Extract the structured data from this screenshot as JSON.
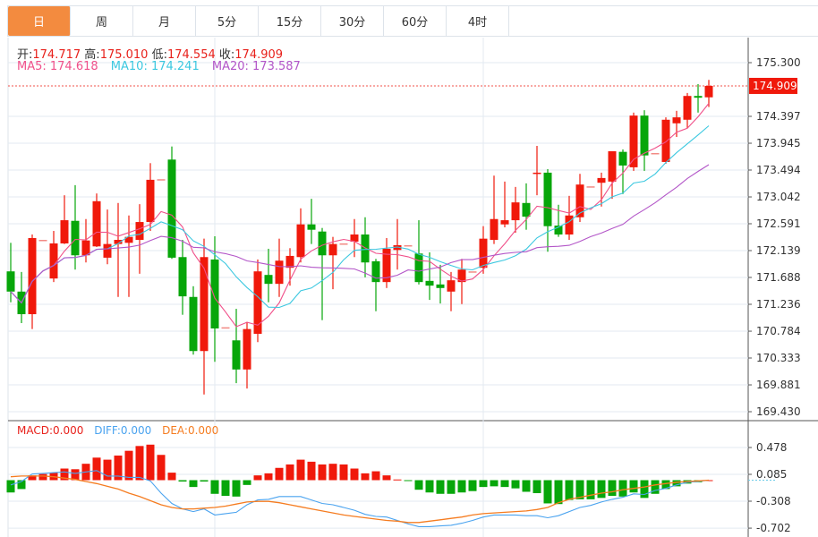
{
  "tabs": [
    {
      "label": "日",
      "active": true
    },
    {
      "label": "周"
    },
    {
      "label": "月"
    },
    {
      "label": "5分"
    },
    {
      "label": "15分"
    },
    {
      "label": "30分"
    },
    {
      "label": "60分"
    },
    {
      "label": "4时"
    }
  ],
  "ohlc_info": {
    "open_label": "开:",
    "open": "174.717",
    "high_label": "高:",
    "high": "175.010",
    "low_label": "低:",
    "low": "174.554",
    "close_label": "收:",
    "close": "174.909"
  },
  "ma_info": {
    "ma5": "MA5: 174.618",
    "ma10": "MA10: 174.241",
    "ma20": "MA20: 173.587"
  },
  "macd_info": {
    "macd": "MACD:0.000",
    "diff": "DIFF:0.000",
    "dea": "DEA:0.000"
  },
  "colors": {
    "up": "#f0190b",
    "down": "#07a60a",
    "doji": "#f28a84",
    "ma5": "#f0508a",
    "ma10": "#3cc8e0",
    "ma20": "#b356c8",
    "diff": "#4aa3ef",
    "dea": "#f57c20",
    "accent": "#f38b3f"
  },
  "chart_data": {
    "type": "candlestick",
    "price_axis": {
      "ticks": [
        "175.300",
        "174.397",
        "173.945",
        "173.494",
        "173.042",
        "172.591",
        "172.139",
        "171.688",
        "171.236",
        "170.784",
        "170.333",
        "169.881",
        "169.430"
      ],
      "range": [
        169.43,
        175.3
      ]
    },
    "last_price": "174.909",
    "candles": [
      [
        171.79,
        172.27,
        171.27,
        171.45
      ],
      [
        171.45,
        171.78,
        170.92,
        171.07
      ],
      [
        171.07,
        172.41,
        170.82,
        172.35
      ],
      [
        172.32,
        172.32,
        172.32,
        172.32
      ],
      [
        171.67,
        172.47,
        171.61,
        172.26
      ],
      [
        172.26,
        173.07,
        172.25,
        172.65
      ],
      [
        172.64,
        173.24,
        171.82,
        172.06
      ],
      [
        172.06,
        172.67,
        171.94,
        172.31
      ],
      [
        172.21,
        173.1,
        172.2,
        172.97
      ],
      [
        172.02,
        172.83,
        171.91,
        172.25
      ],
      [
        172.25,
        172.94,
        171.36,
        172.32
      ],
      [
        172.27,
        172.73,
        171.36,
        172.37
      ],
      [
        172.32,
        172.92,
        171.75,
        172.62
      ],
      [
        172.62,
        173.61,
        172.47,
        173.33
      ],
      [
        173.34,
        173.34,
        173.34,
        173.34
      ],
      [
        173.67,
        173.89,
        172.0,
        172.02
      ],
      [
        172.03,
        172.32,
        171.06,
        171.37
      ],
      [
        171.36,
        171.54,
        170.39,
        170.45
      ],
      [
        170.45,
        172.34,
        169.72,
        172.03
      ],
      [
        171.99,
        172.38,
        170.27,
        170.83
      ],
      [
        170.85,
        170.85,
        170.85,
        170.85
      ],
      [
        170.63,
        171.16,
        169.91,
        170.14
      ],
      [
        170.14,
        170.94,
        169.82,
        170.82
      ],
      [
        170.74,
        171.99,
        170.6,
        171.79
      ],
      [
        171.73,
        172.17,
        171.27,
        171.58
      ],
      [
        171.58,
        172.34,
        171.36,
        171.97
      ],
      [
        171.85,
        172.18,
        171.55,
        172.05
      ],
      [
        172.03,
        172.85,
        171.94,
        172.58
      ],
      [
        172.58,
        173.01,
        172.25,
        172.49
      ],
      [
        172.46,
        172.52,
        170.97,
        172.06
      ],
      [
        172.06,
        172.37,
        171.49,
        172.25
      ],
      [
        172.26,
        172.26,
        172.26,
        172.26
      ],
      [
        172.29,
        172.67,
        172.03,
        172.41
      ],
      [
        172.41,
        172.7,
        171.69,
        171.94
      ],
      [
        171.96,
        172.0,
        171.12,
        171.61
      ],
      [
        171.61,
        172.35,
        171.51,
        172.17
      ],
      [
        172.15,
        172.67,
        171.82,
        172.23
      ],
      [
        172.23,
        172.23,
        172.23,
        172.23
      ],
      [
        172.09,
        172.65,
        171.57,
        171.61
      ],
      [
        171.63,
        172.11,
        171.31,
        171.55
      ],
      [
        171.57,
        171.9,
        171.25,
        171.51
      ],
      [
        171.45,
        171.78,
        171.12,
        171.64
      ],
      [
        171.61,
        172.0,
        171.24,
        171.82
      ],
      [
        171.79,
        171.79,
        171.79,
        171.79
      ],
      [
        171.85,
        172.55,
        171.75,
        172.34
      ],
      [
        172.32,
        173.4,
        172.25,
        172.67
      ],
      [
        172.58,
        173.3,
        172.53,
        172.65
      ],
      [
        172.65,
        173.21,
        172.44,
        172.95
      ],
      [
        172.94,
        173.27,
        172.49,
        172.71
      ],
      [
        173.43,
        173.9,
        173.07,
        173.45
      ],
      [
        173.45,
        173.51,
        172.12,
        172.55
      ],
      [
        172.56,
        172.91,
        172.37,
        172.41
      ],
      [
        172.41,
        173.06,
        172.32,
        172.73
      ],
      [
        172.7,
        173.43,
        172.62,
        173.25
      ],
      [
        173.22,
        173.22,
        173.22,
        173.22
      ],
      [
        173.28,
        173.45,
        172.88,
        173.36
      ],
      [
        173.3,
        173.81,
        173.01,
        173.81
      ],
      [
        173.8,
        173.84,
        173.09,
        173.57
      ],
      [
        173.54,
        174.46,
        173.48,
        174.41
      ],
      [
        174.41,
        174.5,
        173.48,
        173.74
      ],
      [
        173.78,
        173.78,
        173.78,
        173.78
      ],
      [
        173.63,
        174.38,
        173.6,
        174.34
      ],
      [
        174.28,
        174.49,
        174.05,
        174.38
      ],
      [
        174.34,
        174.79,
        174.2,
        174.74
      ],
      [
        174.74,
        174.94,
        174.46,
        174.71
      ],
      [
        174.717,
        175.01,
        174.554,
        174.909
      ]
    ],
    "macd_axis": {
      "ticks": [
        "0.478",
        "0.085",
        "-0.308",
        "-0.702"
      ]
    },
    "macd_hist": [
      -0.18,
      -0.13,
      0.07,
      0.09,
      0.11,
      0.17,
      0.16,
      0.24,
      0.33,
      0.3,
      0.36,
      0.43,
      0.5,
      0.52,
      0.37,
      0.11,
      -0.02,
      -0.1,
      -0.02,
      -0.2,
      -0.23,
      -0.24,
      -0.07,
      0.07,
      0.1,
      0.18,
      0.23,
      0.3,
      0.27,
      0.23,
      0.24,
      0.23,
      0.17,
      0.1,
      0.13,
      0.07,
      0.01,
      -0.01,
      -0.14,
      -0.18,
      -0.2,
      -0.2,
      -0.18,
      -0.16,
      -0.1,
      -0.09,
      -0.1,
      -0.12,
      -0.17,
      -0.19,
      -0.34,
      -0.35,
      -0.29,
      -0.28,
      -0.28,
      -0.26,
      -0.23,
      -0.24,
      -0.18,
      -0.26,
      -0.2,
      -0.13,
      -0.09,
      -0.05,
      -0.03,
      0.0
    ],
    "diff": [
      -0.07,
      -0.02,
      0.09,
      0.1,
      0.11,
      0.12,
      0.1,
      0.12,
      0.14,
      0.06,
      0.06,
      0.04,
      0.04,
      -0.01,
      -0.19,
      -0.34,
      -0.42,
      -0.46,
      -0.42,
      -0.51,
      -0.49,
      -0.47,
      -0.36,
      -0.29,
      -0.28,
      -0.24,
      -0.24,
      -0.24,
      -0.29,
      -0.34,
      -0.36,
      -0.4,
      -0.44,
      -0.5,
      -0.53,
      -0.54,
      -0.59,
      -0.64,
      -0.68,
      -0.68,
      -0.67,
      -0.66,
      -0.63,
      -0.59,
      -0.54,
      -0.51,
      -0.51,
      -0.51,
      -0.52,
      -0.52,
      -0.55,
      -0.52,
      -0.46,
      -0.4,
      -0.37,
      -0.32,
      -0.28,
      -0.25,
      -0.2,
      -0.21,
      -0.15,
      -0.12,
      -0.07,
      -0.03,
      -0.02,
      0.0
    ],
    "dea": [
      0.05,
      0.06,
      0.06,
      0.06,
      0.05,
      0.03,
      0.01,
      -0.02,
      -0.05,
      -0.09,
      -0.13,
      -0.19,
      -0.24,
      -0.3,
      -0.36,
      -0.4,
      -0.42,
      -0.42,
      -0.41,
      -0.4,
      -0.38,
      -0.35,
      -0.32,
      -0.31,
      -0.31,
      -0.33,
      -0.36,
      -0.39,
      -0.42,
      -0.45,
      -0.48,
      -0.51,
      -0.53,
      -0.55,
      -0.57,
      -0.59,
      -0.6,
      -0.62,
      -0.62,
      -0.6,
      -0.58,
      -0.56,
      -0.54,
      -0.51,
      -0.49,
      -0.48,
      -0.47,
      -0.46,
      -0.45,
      -0.43,
      -0.4,
      -0.33,
      -0.28,
      -0.25,
      -0.22,
      -0.19,
      -0.17,
      -0.14,
      -0.12,
      -0.1,
      -0.07,
      -0.05,
      -0.03,
      -0.02,
      -0.01,
      0.0
    ]
  }
}
